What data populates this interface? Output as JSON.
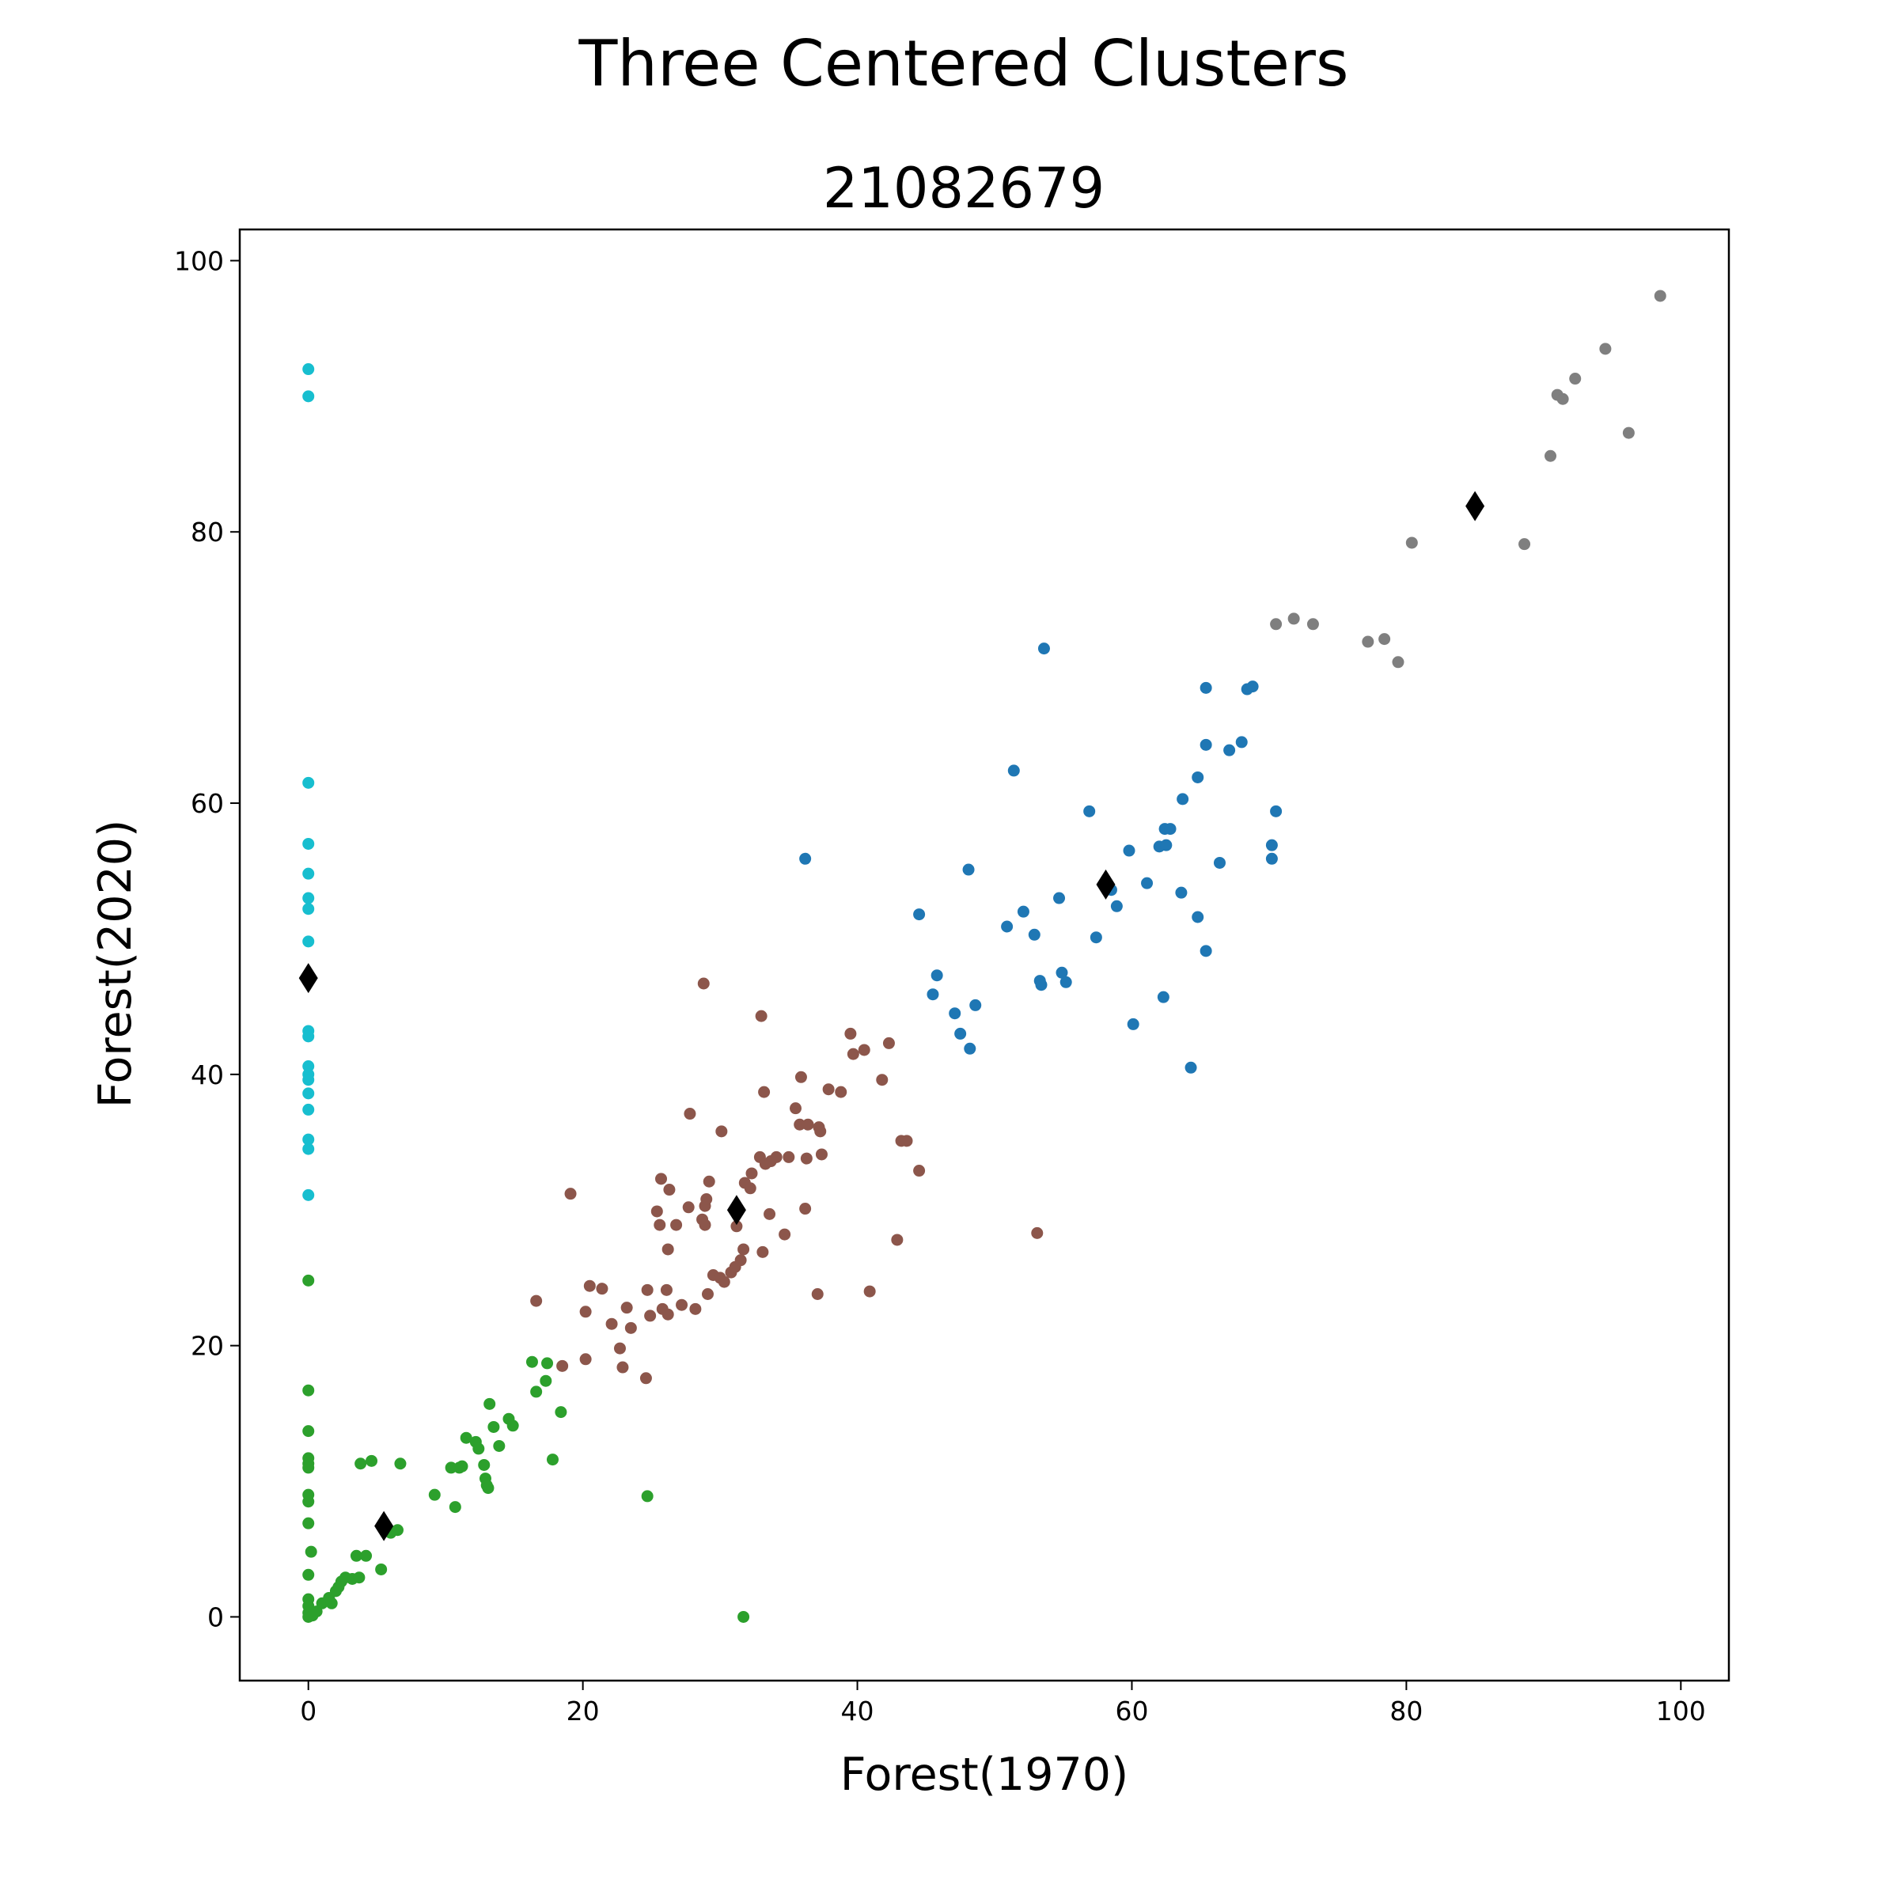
{
  "chart_data": {
    "type": "scatter",
    "title": "Three Centered Clusters",
    "subtitle": "21082679",
    "xlabel": "Forest(1970)",
    "ylabel": "Forest(2020)",
    "xlim": [
      -5,
      103.5
    ],
    "ylim": [
      -4.7,
      102.3
    ],
    "xticks": [
      0,
      20,
      40,
      60,
      80,
      100
    ],
    "yticks": [
      0,
      20,
      40,
      60,
      80,
      100
    ],
    "grid": false,
    "series": [
      {
        "color": "#17becf",
        "points": [
          [
            0,
            92
          ],
          [
            0,
            90
          ],
          [
            0,
            61.5
          ],
          [
            0,
            57
          ],
          [
            0,
            54.8
          ],
          [
            0,
            53
          ],
          [
            0,
            52.2
          ],
          [
            0,
            49.8
          ],
          [
            0,
            43.2
          ],
          [
            0,
            42.8
          ],
          [
            0,
            40.6
          ],
          [
            0,
            40
          ],
          [
            0,
            39.6
          ],
          [
            0,
            38.6
          ],
          [
            0,
            37.4
          ],
          [
            0,
            35.2
          ],
          [
            0,
            34.5
          ],
          [
            0,
            31.1
          ]
        ]
      },
      {
        "color": "#2ca02c",
        "points": [
          [
            0,
            24.8
          ],
          [
            0,
            16.7
          ],
          [
            0,
            13.7
          ],
          [
            0,
            11.7
          ],
          [
            0,
            11.3
          ],
          [
            0,
            11
          ],
          [
            0,
            9
          ],
          [
            0,
            8.5
          ],
          [
            0,
            6.9
          ],
          [
            0.2,
            4.8
          ],
          [
            0,
            3.1
          ],
          [
            0,
            1.3
          ],
          [
            0,
            0.8
          ],
          [
            0,
            0.3
          ],
          [
            0,
            0
          ],
          [
            0.3,
            0.1
          ],
          [
            0.6,
            0.4
          ],
          [
            1,
            1
          ],
          [
            1.5,
            1.4
          ],
          [
            1.7,
            1
          ],
          [
            2,
            1.9
          ],
          [
            2.2,
            2.2
          ],
          [
            2.4,
            2.6
          ],
          [
            2.7,
            2.9
          ],
          [
            3.2,
            2.8
          ],
          [
            3.5,
            4.5
          ],
          [
            3.7,
            2.9
          ],
          [
            3.8,
            11.3
          ],
          [
            4.2,
            4.5
          ],
          [
            4.6,
            11.5
          ],
          [
            5.3,
            3.5
          ],
          [
            6,
            6.2
          ],
          [
            6.5,
            6.4
          ],
          [
            6.7,
            11.3
          ],
          [
            9.2,
            9
          ],
          [
            10.4,
            11
          ],
          [
            10.7,
            8.1
          ],
          [
            11,
            11
          ],
          [
            11.2,
            11.1
          ],
          [
            11.5,
            13.2
          ],
          [
            12.2,
            12.9
          ],
          [
            12.4,
            12.4
          ],
          [
            12.8,
            11.2
          ],
          [
            12.9,
            10.2
          ],
          [
            13,
            9.7
          ],
          [
            13.1,
            9.5
          ],
          [
            13.2,
            15.7
          ],
          [
            13.5,
            14
          ],
          [
            13.9,
            12.6
          ],
          [
            14.6,
            14.6
          ],
          [
            14.9,
            14.1
          ],
          [
            16.3,
            18.8
          ],
          [
            16.6,
            16.6
          ],
          [
            17.3,
            17.4
          ],
          [
            17.4,
            18.7
          ],
          [
            17.8,
            11.6
          ],
          [
            18.4,
            15.1
          ],
          [
            24.7,
            8.9
          ],
          [
            31.7,
            0
          ]
        ]
      },
      {
        "color": "#8c564b",
        "points": [
          [
            16.6,
            23.3
          ],
          [
            18.5,
            18.5
          ],
          [
            19.1,
            31.2
          ],
          [
            20.2,
            22.5
          ],
          [
            20.2,
            19
          ],
          [
            20.5,
            24.4
          ],
          [
            21.4,
            24.2
          ],
          [
            22.1,
            21.6
          ],
          [
            22.7,
            19.8
          ],
          [
            22.9,
            18.4
          ],
          [
            23.2,
            22.8
          ],
          [
            23.5,
            21.3
          ],
          [
            24.6,
            17.6
          ],
          [
            24.7,
            24.1
          ],
          [
            24.9,
            22.2
          ],
          [
            25.4,
            29.9
          ],
          [
            25.6,
            28.9
          ],
          [
            25.7,
            32.3
          ],
          [
            25.8,
            22.7
          ],
          [
            26.1,
            24.1
          ],
          [
            26.2,
            27.1
          ],
          [
            26.2,
            22.3
          ],
          [
            26.3,
            31.5
          ],
          [
            26.8,
            28.9
          ],
          [
            27.2,
            23
          ],
          [
            27.7,
            30.2
          ],
          [
            27.8,
            37.1
          ],
          [
            28.2,
            22.7
          ],
          [
            28.7,
            29.3
          ],
          [
            28.8,
            46.7
          ],
          [
            28.9,
            28.9
          ],
          [
            28.9,
            30.3
          ],
          [
            29,
            30.8
          ],
          [
            29.1,
            23.8
          ],
          [
            29.2,
            32.1
          ],
          [
            29.5,
            25.2
          ],
          [
            30,
            25
          ],
          [
            30.1,
            35.8
          ],
          [
            30.3,
            24.7
          ],
          [
            30.8,
            25.4
          ],
          [
            31.1,
            25.8
          ],
          [
            31.2,
            28.8
          ],
          [
            31.5,
            26.3
          ],
          [
            31.7,
            27.1
          ],
          [
            31.8,
            32
          ],
          [
            32.2,
            31.6
          ],
          [
            32.3,
            32.7
          ],
          [
            32.9,
            33.9
          ],
          [
            33,
            44.3
          ],
          [
            33.1,
            26.9
          ],
          [
            33.2,
            38.7
          ],
          [
            33.3,
            33.4
          ],
          [
            33.6,
            29.7
          ],
          [
            33.7,
            33.6
          ],
          [
            34.1,
            33.9
          ],
          [
            34.7,
            28.2
          ],
          [
            35,
            33.9
          ],
          [
            35.5,
            37.5
          ],
          [
            35.8,
            36.3
          ],
          [
            35.9,
            39.8
          ],
          [
            36.2,
            30.1
          ],
          [
            36.3,
            33.8
          ],
          [
            36.4,
            36.3
          ],
          [
            37.2,
            36.1
          ],
          [
            37.3,
            35.8
          ],
          [
            37.4,
            34.1
          ],
          [
            37.1,
            23.8
          ],
          [
            37.9,
            38.9
          ],
          [
            38.8,
            38.7
          ],
          [
            39.5,
            43
          ],
          [
            39.7,
            41.5
          ],
          [
            40.5,
            41.8
          ],
          [
            40.9,
            24
          ],
          [
            41.8,
            39.6
          ],
          [
            42.3,
            42.3
          ],
          [
            42.9,
            27.8
          ],
          [
            43.2,
            35.1
          ],
          [
            43.6,
            35.1
          ],
          [
            44.5,
            32.9
          ],
          [
            53.1,
            28.3
          ]
        ]
      },
      {
        "color": "#1f77b4",
        "points": [
          [
            36.2,
            55.9
          ],
          [
            44.5,
            51.8
          ],
          [
            45.5,
            45.9
          ],
          [
            45.8,
            47.3
          ],
          [
            47.1,
            44.5
          ],
          [
            47.5,
            43
          ],
          [
            48.1,
            55.1
          ],
          [
            48.2,
            41.9
          ],
          [
            48.6,
            45.1
          ],
          [
            50.9,
            50.9
          ],
          [
            51.4,
            62.4
          ],
          [
            52.1,
            52
          ],
          [
            52.9,
            50.3
          ],
          [
            53.3,
            46.9
          ],
          [
            53.4,
            46.6
          ],
          [
            53.6,
            71.4
          ],
          [
            54.7,
            53
          ],
          [
            54.9,
            47.5
          ],
          [
            55.2,
            46.8
          ],
          [
            56.9,
            59.4
          ],
          [
            57.4,
            50.1
          ],
          [
            58.5,
            53.6
          ],
          [
            58.9,
            52.4
          ],
          [
            59.8,
            56.5
          ],
          [
            60.1,
            43.7
          ],
          [
            61.1,
            54.1
          ],
          [
            62,
            56.8
          ],
          [
            62.4,
            58.1
          ],
          [
            62.3,
            45.7
          ],
          [
            62.5,
            56.9
          ],
          [
            62.8,
            58.1
          ],
          [
            63.6,
            53.4
          ],
          [
            63.7,
            60.3
          ],
          [
            64.3,
            40.5
          ],
          [
            64.8,
            51.6
          ],
          [
            64.8,
            61.9
          ],
          [
            65.4,
            64.3
          ],
          [
            65.4,
            68.5
          ],
          [
            65.4,
            49.1
          ],
          [
            66.4,
            55.6
          ],
          [
            67.1,
            63.9
          ],
          [
            68,
            64.5
          ],
          [
            68.4,
            68.4
          ],
          [
            68.8,
            68.6
          ],
          [
            70.2,
            56.9
          ],
          [
            70.2,
            55.9
          ],
          [
            70.5,
            59.4
          ]
        ]
      },
      {
        "color": "#7f7f7f",
        "points": [
          [
            70.5,
            73.2
          ],
          [
            71.8,
            73.6
          ],
          [
            73.2,
            73.2
          ],
          [
            77.2,
            71.9
          ],
          [
            78.4,
            72.1
          ],
          [
            79.4,
            70.4
          ],
          [
            80.4,
            79.2
          ],
          [
            88.6,
            79.1
          ],
          [
            90.5,
            85.6
          ],
          [
            91,
            90.1
          ],
          [
            91.4,
            89.8
          ],
          [
            92.3,
            91.3
          ],
          [
            94.5,
            93.5
          ],
          [
            96.2,
            87.3
          ],
          [
            98.5,
            97.4
          ]
        ]
      }
    ],
    "centroids": {
      "color": "#000000",
      "marker": "diamond",
      "points": [
        [
          0,
          47.1
        ],
        [
          5.5,
          6.7
        ],
        [
          31.2,
          30
        ],
        [
          58.1,
          54
        ],
        [
          85,
          81.9
        ]
      ]
    }
  }
}
